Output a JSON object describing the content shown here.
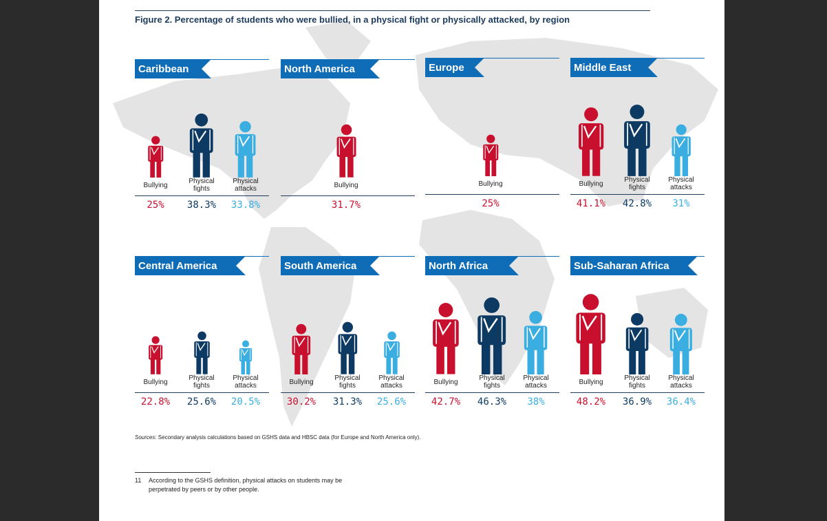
{
  "figure_title": "Figure 2. Percentage of students who were bullied, in a physical fight or physically attacked, by region",
  "colors": {
    "bullying": "#c8102e",
    "fights": "#0d3a63",
    "attacks": "#3aaee0",
    "header": "#0f6cb6"
  },
  "chart_data": [
    {
      "type": "bar",
      "region": "Caribbean",
      "categories": [
        "Bullying",
        "Physical fights",
        "Physical attacks"
      ],
      "values": [
        25,
        38.3,
        33.8
      ],
      "labels": [
        "25%",
        "38.3%",
        "33.8%"
      ]
    },
    {
      "type": "bar",
      "region": "North America",
      "categories": [
        "Bullying"
      ],
      "values": [
        31.7
      ],
      "labels": [
        "31.7%"
      ]
    },
    {
      "type": "bar",
      "region": "Europe",
      "categories": [
        "Bullying"
      ],
      "values": [
        25
      ],
      "labels": [
        "25%"
      ]
    },
    {
      "type": "bar",
      "region": "Middle East",
      "categories": [
        "Bullying",
        "Physical fights",
        "Physical attacks"
      ],
      "values": [
        41.1,
        42.8,
        31
      ],
      "labels": [
        "41.1%",
        "42.8%",
        "31%"
      ]
    },
    {
      "type": "bar",
      "region": "Central America",
      "categories": [
        "Bullying",
        "Physical fights",
        "Physical attacks"
      ],
      "values": [
        22.8,
        25.6,
        20.5
      ],
      "labels": [
        "22.8%",
        "25.6%",
        "20.5%"
      ]
    },
    {
      "type": "bar",
      "region": "South America",
      "categories": [
        "Bullying",
        "Physical fights",
        "Physical attacks"
      ],
      "values": [
        30.2,
        31.3,
        25.6
      ],
      "labels": [
        "30.2%",
        "31.3%",
        "25.6%"
      ]
    },
    {
      "type": "bar",
      "region": "North Africa",
      "categories": [
        "Bullying",
        "Physical fights",
        "Physical attacks"
      ],
      "values": [
        42.7,
        46.3,
        38
      ],
      "labels": [
        "42.7%",
        "46.3%",
        "38%"
      ]
    },
    {
      "type": "bar",
      "region": "Sub-Saharan Africa",
      "categories": [
        "Bullying",
        "Physical fights",
        "Physical attacks"
      ],
      "values": [
        48.2,
        36.9,
        36.4
      ],
      "labels": [
        "48.2%",
        "36.9%",
        "36.4%"
      ]
    }
  ],
  "sources": {
    "label": "Sources",
    "text": ": Secondary analysis calculations based on GSHS data and HBSC data (for Europe and North America only)."
  },
  "footnote": {
    "number": "11",
    "line1": "According to the GSHS definition, physical attacks on students may be",
    "line2": "perpetrated by peers or by other people."
  }
}
